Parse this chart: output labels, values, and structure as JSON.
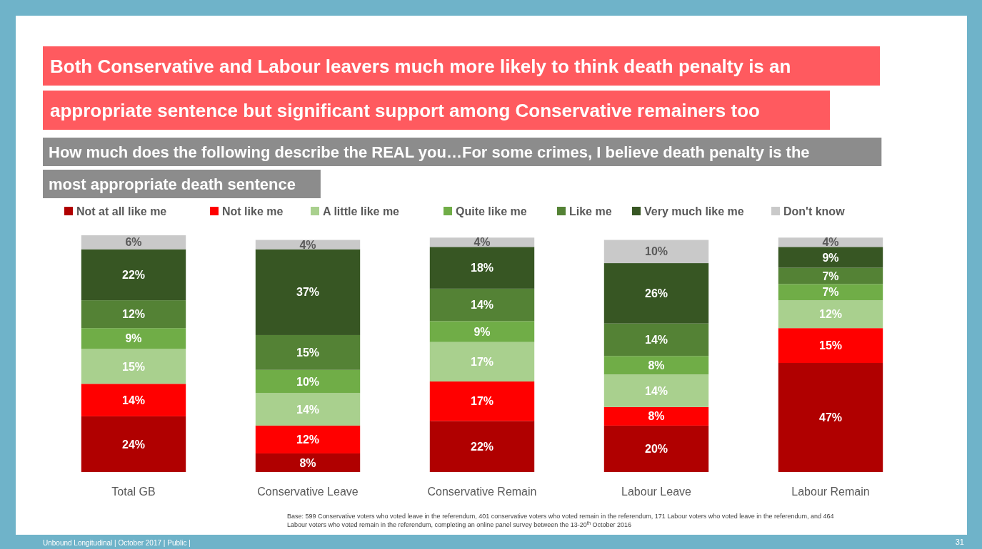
{
  "chart_data": {
    "type": "bar",
    "stacked": true,
    "legend": "top",
    "title": "Both Conservative and Labour leavers much more likely to think death penalty is an appropriate sentence but significant support among Conservative remainers too",
    "subtitle": "How much does the following describe the REAL you…For some crimes, I believe death penalty is the most appropriate death sentence",
    "categories": [
      "Total GB",
      "Conservative Leave",
      "Conservative Remain",
      "Labour Leave",
      "Labour Remain"
    ],
    "series": [
      {
        "name": "Not at all like me",
        "color": "#b00000",
        "values": [
          24,
          8,
          22,
          20,
          47
        ],
        "value_labels": [
          "24%",
          "8%",
          "22%",
          "20%",
          "47%"
        ]
      },
      {
        "name": "Not like me",
        "color": "#ff0000",
        "values": [
          14,
          12,
          17,
          8,
          15
        ],
        "value_labels": [
          "14%",
          "12%",
          "17%",
          "8%",
          "15%"
        ]
      },
      {
        "name": "A little like me",
        "color": "#a9d08e",
        "values": [
          15,
          14,
          17,
          14,
          12
        ],
        "value_labels": [
          "15%",
          "14%",
          "17%",
          "14%",
          "12%"
        ]
      },
      {
        "name": "Quite like me",
        "color": "#70ad47",
        "values": [
          9,
          10,
          9,
          8,
          7
        ],
        "value_labels": [
          "9%",
          "10%",
          "9%",
          "8%",
          "7%"
        ]
      },
      {
        "name": "Like me",
        "color": "#548235",
        "values": [
          12,
          15,
          14,
          14,
          7
        ],
        "value_labels": [
          "12%",
          "15%",
          "14%",
          "14%",
          "7%"
        ]
      },
      {
        "name": "Very much like me",
        "color": "#375623",
        "values": [
          22,
          37,
          18,
          26,
          9
        ],
        "value_labels": [
          "22%",
          "37%",
          "18%",
          "26%",
          "9%"
        ]
      },
      {
        "name": "Don't know",
        "color": "#c9c9c9",
        "values": [
          6,
          4,
          4,
          10,
          4
        ],
        "value_labels": [
          "6%",
          "4%",
          "4%",
          "10%",
          "4%"
        ]
      }
    ],
    "annotations": [
      "Base: 599 Conservative voters who voted leave in the referendum, 401 conservative voters who voted remain in the referendum, 171 Labour voters who voted leave in the referendum, and 464 Labour voters who voted remain in the referendum, completing  an online panel survey between the 13-20$^{th}$ October 2016",
      "Unbound Longitudinal |  October 2017 |  Public |",
      "31"
    ]
  }
}
